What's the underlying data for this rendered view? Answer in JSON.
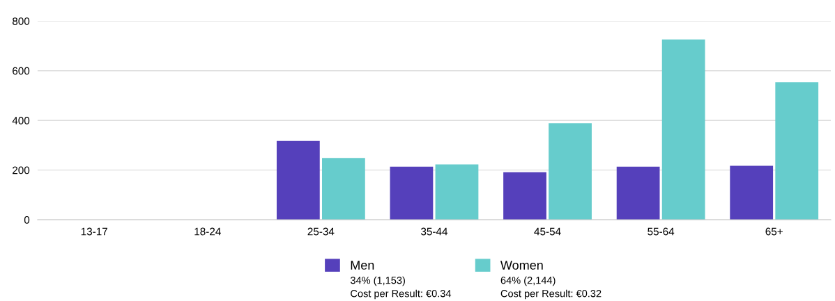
{
  "chart_data": {
    "type": "bar",
    "categories": [
      "13-17",
      "18-24",
      "25-34",
      "35-44",
      "45-54",
      "55-64",
      "65+"
    ],
    "series": [
      {
        "name": "Men",
        "color": "#5540bb",
        "values": [
          null,
          null,
          317,
          214,
          191,
          214,
          217
        ]
      },
      {
        "name": "Women",
        "color": "#66cccc",
        "values": [
          null,
          null,
          249,
          223,
          389,
          726,
          554
        ]
      }
    ],
    "ylim": [
      0,
      800
    ],
    "yticks": [
      0,
      200,
      400,
      600,
      800
    ],
    "grid": "y",
    "legend": "bottom",
    "annotations": [
      "34% (1,153)",
      "Cost per Result: €0.34",
      "64% (2,144)",
      "Cost per Result: €0.32"
    ]
  }
}
